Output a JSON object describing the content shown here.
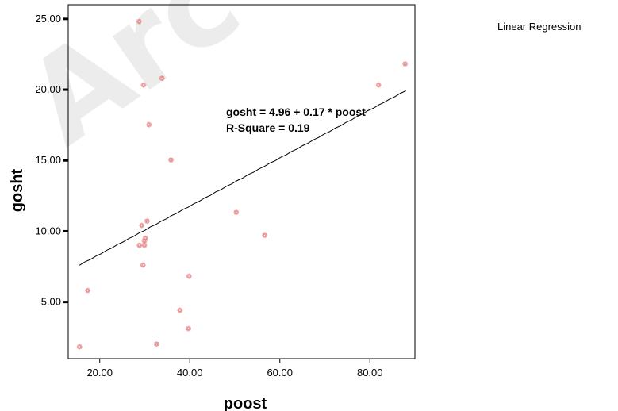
{
  "legend": {
    "label": "Linear Regression"
  },
  "colors": {
    "points": "#e06a6a",
    "line": "#000000",
    "frame": "#000000",
    "watermark": "#dcdcdc"
  },
  "point_marker": "ornamental-glyph",
  "chart_data": {
    "type": "scatter",
    "xlabel": "poost",
    "ylabel": "gosht",
    "xlim": [
      13,
      90
    ],
    "ylim": [
      1,
      26
    ],
    "xticks": [
      "20.00",
      "40.00",
      "60.00",
      "80.00"
    ],
    "yticks": [
      "5.00",
      "10.00",
      "15.00",
      "20.00",
      "25.00"
    ],
    "x": [
      15.5,
      17.3,
      28.7,
      28.8,
      29.3,
      29.6,
      29.7,
      29.9,
      29.9,
      30.1,
      30.5,
      30.9,
      32.6,
      33.8,
      35.8,
      37.8,
      39.7,
      39.8,
      50.3,
      56.6,
      81.9,
      87.8
    ],
    "y": [
      1.8,
      5.8,
      24.8,
      9.0,
      10.4,
      7.6,
      20.3,
      9.0,
      9.3,
      9.5,
      10.7,
      17.5,
      2.0,
      20.8,
      15.0,
      4.4,
      3.1,
      6.8,
      11.3,
      9.7,
      20.3,
      21.8
    ],
    "regression": {
      "intercept": 4.96,
      "slope": 0.17,
      "x_range": [
        15.5,
        88
      ],
      "equation": "gosht = 4.96 + 0.17 * poost",
      "r_square": "R-Square = 0.19"
    },
    "grid": false,
    "legend_position": "top-right"
  }
}
